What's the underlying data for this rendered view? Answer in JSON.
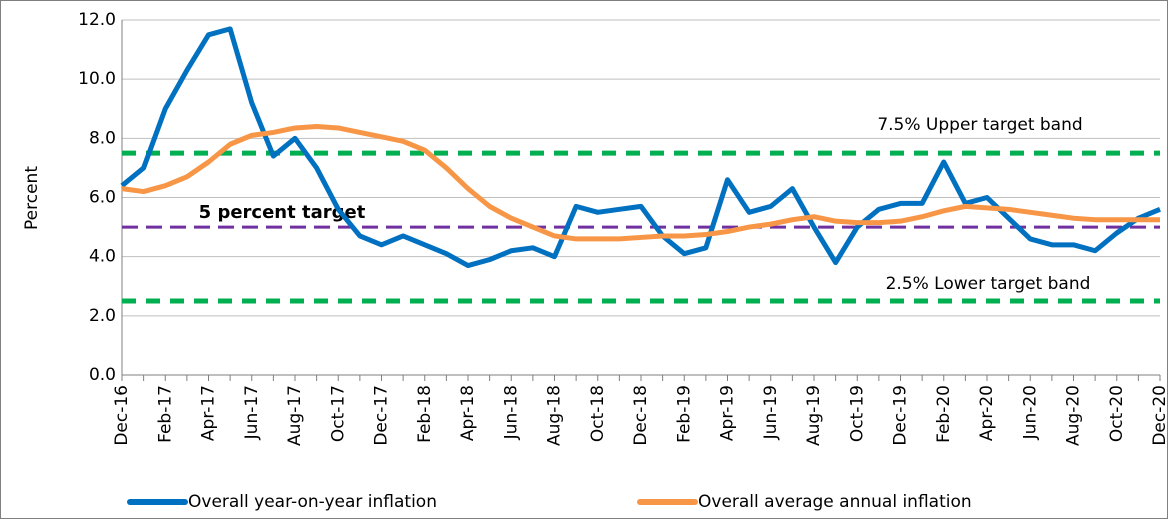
{
  "chart_data": {
    "type": "line",
    "ylabel": "Percent",
    "categories": [
      "Dec-16",
      null,
      "Feb-17",
      null,
      "Apr-17",
      null,
      "Jun-17",
      null,
      "Aug-17",
      null,
      "Oct-17",
      null,
      "Dec-17",
      null,
      "Feb-18",
      null,
      "Apr-18",
      null,
      "Jun-18",
      null,
      "Aug-18",
      null,
      "Oct-18",
      null,
      "Dec-18",
      null,
      "Feb-19",
      null,
      "Apr-19",
      null,
      "Jun-19",
      null,
      "Aug-19",
      null,
      "Oct-19",
      null,
      "Dec-19",
      null,
      "Feb-20",
      null,
      "Apr-20",
      null,
      "Jun-20",
      null,
      "Aug-20",
      null,
      "Oct-20",
      null,
      "Dec-20"
    ],
    "series": [
      {
        "name": "Overall year-on-year inflation",
        "color": "#0070c0",
        "values": [
          6.4,
          7.0,
          9.0,
          10.3,
          11.5,
          11.7,
          9.2,
          7.4,
          8.0,
          7.0,
          5.6,
          4.7,
          4.4,
          4.7,
          4.4,
          4.1,
          3.7,
          3.9,
          4.2,
          4.3,
          4.0,
          5.7,
          5.5,
          5.6,
          5.7,
          4.7,
          4.1,
          4.3,
          6.6,
          5.5,
          5.7,
          6.3,
          5.0,
          3.8,
          5.0,
          5.6,
          5.8,
          5.8,
          7.2,
          5.8,
          6.0,
          5.3,
          4.6,
          4.4,
          4.4,
          4.2,
          4.8,
          5.3,
          5.6
        ]
      },
      {
        "name": "Overall average annual inflation",
        "color": "#f79646",
        "values": [
          6.3,
          6.2,
          6.4,
          6.7,
          7.2,
          7.8,
          8.1,
          8.2,
          8.35,
          8.4,
          8.35,
          8.2,
          8.05,
          7.9,
          7.6,
          7.0,
          6.3,
          5.7,
          5.3,
          5.0,
          4.7,
          4.6,
          4.6,
          4.6,
          4.65,
          4.7,
          4.7,
          4.75,
          4.85,
          5.0,
          5.1,
          5.25,
          5.35,
          5.2,
          5.15,
          5.15,
          5.2,
          5.35,
          5.55,
          5.7,
          5.65,
          5.6,
          5.5,
          5.4,
          5.3,
          5.25,
          5.25,
          5.25,
          5.25
        ]
      }
    ],
    "reference_lines": [
      {
        "value": 7.5,
        "color": "#00b050",
        "label": "7.5% Upper target band"
      },
      {
        "value": 2.5,
        "color": "#00b050",
        "label": "2.5% Lower target band"
      },
      {
        "value": 5,
        "color": "#7030a0",
        "label": "5 percent target"
      }
    ],
    "ylim": [
      0,
      12
    ],
    "yticks": [
      {
        "value": 0,
        "label": "0.0"
      },
      {
        "value": 2,
        "label": "2.0"
      },
      {
        "value": 4,
        "label": "4.0"
      },
      {
        "value": 6,
        "label": "6.0"
      },
      {
        "value": 8,
        "label": "8.0"
      },
      {
        "value": 10,
        "label": "10.0"
      },
      {
        "value": 12,
        "label": "12.0"
      }
    ],
    "grid": true,
    "legend": "bottom"
  }
}
